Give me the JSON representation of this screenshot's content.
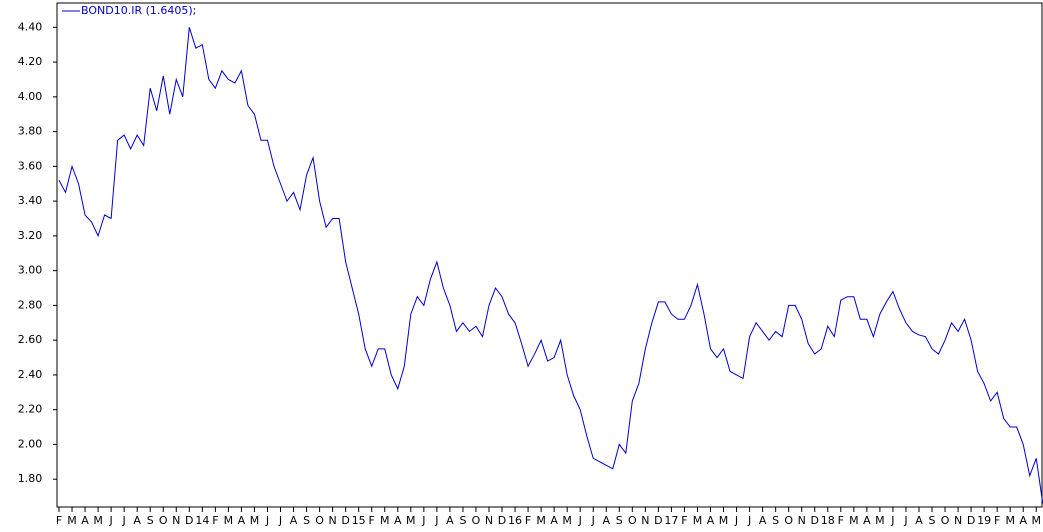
{
  "chart_data": {
    "type": "line",
    "legend": "BOND10.IR (1.6405);",
    "categories": [
      "F",
      null,
      "M",
      null,
      "A",
      null,
      "M",
      null,
      "J",
      null,
      "J",
      null,
      "A",
      null,
      "S",
      null,
      "O",
      null,
      "N",
      null,
      "D",
      null,
      "14",
      null,
      "F",
      null,
      "M",
      null,
      "A",
      null,
      "M",
      null,
      "J",
      null,
      "J",
      null,
      "A",
      null,
      "S",
      null,
      "O",
      null,
      "N",
      null,
      "D",
      null,
      "15",
      null,
      "F",
      null,
      "M",
      null,
      "A",
      null,
      "M",
      null,
      "J",
      null,
      "J",
      null,
      "A",
      null,
      "S",
      null,
      "O",
      null,
      "N",
      null,
      "D",
      null,
      "16",
      null,
      "F",
      null,
      "M",
      null,
      "A",
      null,
      "M",
      null,
      "J",
      null,
      "J",
      null,
      "A",
      null,
      "S",
      null,
      "O",
      null,
      "N",
      null,
      "D",
      null,
      "17",
      null,
      "F",
      null,
      "M",
      null,
      "A",
      null,
      "M",
      null,
      "J",
      null,
      "J",
      null,
      "A",
      null,
      "S",
      null,
      "O",
      null,
      "N",
      null,
      "D",
      null,
      "18",
      null,
      "F",
      null,
      "M",
      null,
      "A",
      null,
      "M",
      null,
      "J",
      null,
      "J",
      null,
      "A",
      null,
      "S",
      null,
      "O",
      null,
      "N",
      null,
      "D",
      null,
      "19",
      null,
      "F",
      null,
      "M",
      null,
      "A",
      null,
      "M",
      null
    ],
    "series": [
      {
        "name": "BOND10.IR",
        "color": "#0000cc",
        "values": [
          3.52,
          3.45,
          3.6,
          3.5,
          3.32,
          3.28,
          3.2,
          3.32,
          3.3,
          3.75,
          3.78,
          3.7,
          3.78,
          3.72,
          4.05,
          3.92,
          4.12,
          3.9,
          4.1,
          4.0,
          4.4,
          4.28,
          4.3,
          4.1,
          4.05,
          4.15,
          4.1,
          4.08,
          4.15,
          3.95,
          3.9,
          3.75,
          3.75,
          3.6,
          3.5,
          3.4,
          3.45,
          3.35,
          3.55,
          3.65,
          3.4,
          3.25,
          3.3,
          3.3,
          3.05,
          2.9,
          2.75,
          2.55,
          2.45,
          2.55,
          2.55,
          2.4,
          2.32,
          2.45,
          2.75,
          2.85,
          2.8,
          2.95,
          3.05,
          2.9,
          2.8,
          2.65,
          2.7,
          2.65,
          2.68,
          2.62,
          2.8,
          2.9,
          2.85,
          2.75,
          2.7,
          2.58,
          2.45,
          2.52,
          2.6,
          2.48,
          2.5,
          2.6,
          2.4,
          2.28,
          2.2,
          2.05,
          1.92,
          1.9,
          1.88,
          1.86,
          2.0,
          1.95,
          2.25,
          2.35,
          2.55,
          2.7,
          2.82,
          2.82,
          2.75,
          2.72,
          2.72,
          2.8,
          2.92,
          2.75,
          2.55,
          2.5,
          2.55,
          2.42,
          2.4,
          2.38,
          2.62,
          2.7,
          2.65,
          2.6,
          2.65,
          2.62,
          2.8,
          2.8,
          2.72,
          2.58,
          2.52,
          2.55,
          2.68,
          2.62,
          2.83,
          2.85,
          2.85,
          2.72,
          2.72,
          2.62,
          2.75,
          2.82,
          2.88,
          2.78,
          2.7,
          2.65,
          2.63,
          2.62,
          2.55,
          2.52,
          2.6,
          2.7,
          2.65,
          2.72,
          2.6,
          2.42,
          2.35,
          2.25,
          2.3,
          2.15,
          2.1,
          2.1,
          2.0,
          1.82,
          1.92,
          1.66
        ]
      }
    ],
    "ylim": [
      1.64,
      4.54
    ],
    "yticks": [
      {
        "value": 1.8,
        "label": "1.80"
      },
      {
        "value": 2.0,
        "label": "2.00"
      },
      {
        "value": 2.2,
        "label": "2.20"
      },
      {
        "value": 2.4,
        "label": "2.40"
      },
      {
        "value": 2.6,
        "label": "2.60"
      },
      {
        "value": 2.8,
        "label": "2.80"
      },
      {
        "value": 3.0,
        "label": "3.00"
      },
      {
        "value": 3.2,
        "label": "3.20"
      },
      {
        "value": 3.4,
        "label": "3.40"
      },
      {
        "value": 3.6,
        "label": "3.60"
      },
      {
        "value": 3.8,
        "label": "3.80"
      },
      {
        "value": 4.0,
        "label": "4.00"
      },
      {
        "value": 4.2,
        "label": "4.20"
      },
      {
        "value": 4.4,
        "label": "4.40"
      }
    ],
    "grid": false
  }
}
